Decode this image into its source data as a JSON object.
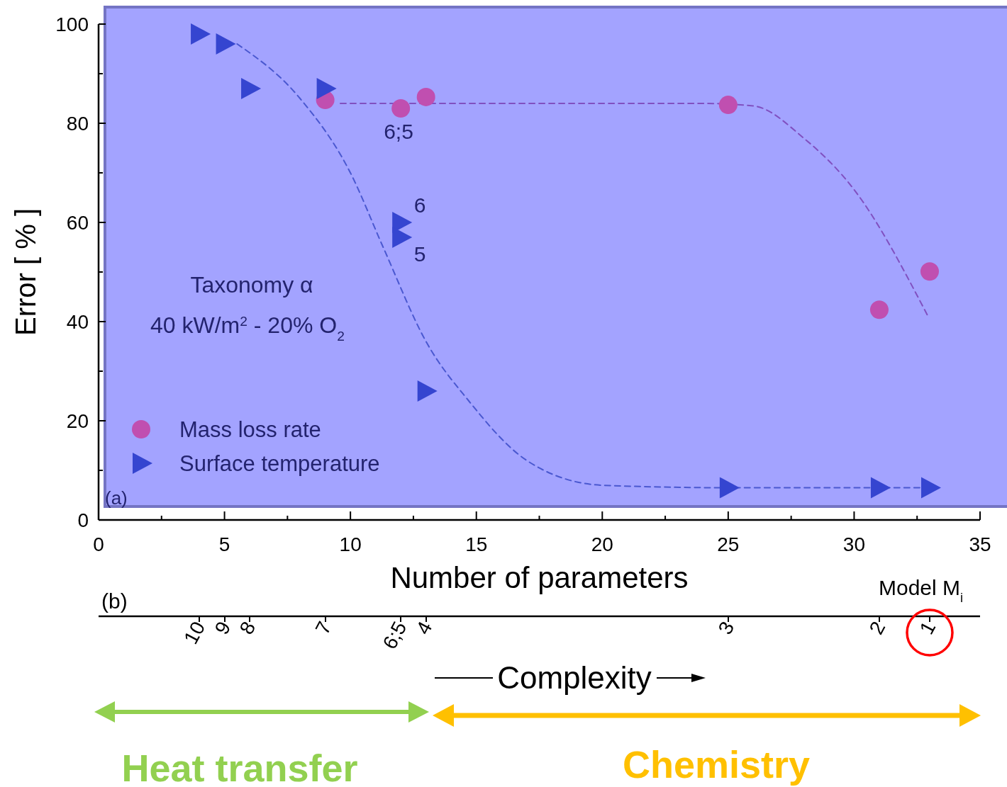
{
  "chart_data": [
    {
      "type": "scatter",
      "xlabel": "Number of parameters",
      "ylabel": "Error  [ % ]",
      "xlim": [
        0,
        35
      ],
      "xticks": [
        0,
        {
          "value": 2.5,
          "label": null
        },
        5,
        {
          "value": 7.5,
          "label": null
        },
        10,
        {
          "value": 12.5,
          "label": null
        },
        15,
        {
          "value": 17.5,
          "label": null
        },
        20,
        {
          "value": 22.5,
          "label": null
        },
        25,
        {
          "value": 27.5,
          "label": null
        },
        30,
        {
          "value": 32.5,
          "label": null
        },
        35
      ],
      "ylim": [
        0,
        100
      ],
      "yticks": [
        0,
        {
          "value": 10,
          "label": null
        },
        20,
        {
          "value": 30,
          "label": null
        },
        40,
        {
          "value": 50,
          "label": null
        },
        60,
        {
          "value": 70,
          "label": null
        },
        80,
        {
          "value": 90,
          "label": null
        },
        100
      ],
      "series": [
        {
          "name": "Mass loss rate",
          "type": "scatter",
          "marker": "circle",
          "color": "#c04fb0",
          "x": [
            9,
            12,
            13,
            25,
            31,
            33
          ],
          "values": [
            84.7,
            83,
            85.3,
            83.7,
            42.4,
            50.1
          ]
        },
        {
          "name": "Surface temperature",
          "type": "scatter",
          "marker": "triangle",
          "color": "#3545d0",
          "x": [
            4,
            5,
            6,
            9,
            12,
            12,
            13,
            25,
            31,
            33
          ],
          "values": [
            98,
            96,
            87,
            87,
            60,
            57,
            26,
            6.5,
            6.5,
            6.5
          ]
        },
        {
          "type": "line",
          "line_style": "dashed",
          "color": "#8050c0",
          "x": [
            9.6,
            15,
            20,
            24,
            26,
            28,
            30,
            32.9
          ],
          "values": [
            84,
            84,
            84,
            84,
            83.5,
            77,
            66.6,
            41.4
          ]
        },
        {
          "type": "line",
          "line_style": "dashed",
          "color": "#4a58d0",
          "x": [
            5.5,
            8,
            10,
            11.3,
            13,
            14.7,
            17,
            20,
            25,
            33
          ],
          "values": [
            96,
            85,
            70,
            55,
            36,
            24,
            12,
            7,
            6.5,
            6.5
          ]
        }
      ],
      "legend": "bottom left",
      "annotations": [
        "6;5",
        "6",
        "5",
        "Taxonomy α",
        "40 kW/m$^{2}$ - 20% O$_{2}$",
        "(a)"
      ]
    },
    {
      "type": "other",
      "xlabel": "Model M$_{i}$",
      "annotations": [
        "10",
        "9",
        "8",
        "7",
        "6;5",
        "4",
        "3",
        "2",
        "1",
        "(b)",
        "Complexity",
        "Heat transfer",
        "Chemistry"
      ]
    }
  ]
}
